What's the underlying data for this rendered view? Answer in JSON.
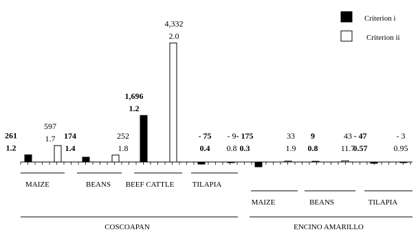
{
  "chart_data": {
    "type": "bar",
    "grid": false,
    "legend_position": "top-right",
    "series": [
      {
        "name": "Criterion i",
        "color": "#000000"
      },
      {
        "name": "Criterion ii",
        "color": "#ffffff"
      }
    ],
    "bars": [
      {
        "region": "COSCOAPAN",
        "product": "MAIZE",
        "series": "Criterion i",
        "value": 261,
        "value_label": "261",
        "ratio_label": "1.2",
        "bold": true
      },
      {
        "region": "COSCOAPAN",
        "product": "MAIZE",
        "series": "Criterion ii",
        "value": 597,
        "value_label": "597",
        "ratio_label": "1.7",
        "bold": false
      },
      {
        "region": "COSCOAPAN",
        "product": "BEANS",
        "series": "Criterion i",
        "value": 174,
        "value_label": "174",
        "ratio_label": "1.4",
        "bold": true
      },
      {
        "region": "COSCOAPAN",
        "product": "BEANS",
        "series": "Criterion ii",
        "value": 252,
        "value_label": "252",
        "ratio_label": "1.8",
        "bold": false
      },
      {
        "region": "COSCOAPAN",
        "product": "BEEF CATTLE",
        "series": "Criterion i",
        "value": 1696,
        "value_label": "1,696",
        "ratio_label": "1.2",
        "bold": true
      },
      {
        "region": "COSCOAPAN",
        "product": "BEEF CATTLE",
        "series": "Criterion ii",
        "value": 4332,
        "value_label": "4,332",
        "ratio_label": "2.0",
        "bold": false
      },
      {
        "region": "COSCOAPAN",
        "product": "TILAPIA",
        "series": "Criterion i",
        "value": -75,
        "value_label": "- 75",
        "ratio_label": "0.4",
        "bold": true
      },
      {
        "region": "COSCOAPAN",
        "product": "TILAPIA",
        "series": "Criterion ii",
        "value": -9,
        "value_label": "- 9",
        "ratio_label": "0.8",
        "bold": false
      },
      {
        "region": "ENCINO AMARILLO",
        "product": "MAIZE",
        "series": "Criterion i",
        "value": -175,
        "value_label": "- 175",
        "ratio_label": "0.3",
        "bold": true
      },
      {
        "region": "ENCINO AMARILLO",
        "product": "MAIZE",
        "series": "Criterion ii",
        "value": 33,
        "value_label": "33",
        "ratio_label": "1.9",
        "bold": false
      },
      {
        "region": "ENCINO AMARILLO",
        "product": "BEANS",
        "series": "Criterion i",
        "value": 9,
        "value_label": "9",
        "ratio_label": "0.8",
        "bold": true
      },
      {
        "region": "ENCINO AMARILLO",
        "product": "BEANS",
        "series": "Criterion ii",
        "value": 43,
        "value_label": "43",
        "ratio_label": "11.7",
        "bold": false
      },
      {
        "region": "ENCINO AMARILLO",
        "product": "TILAPIA",
        "series": "Criterion i",
        "value": -47,
        "value_label": "- 47",
        "ratio_label": "0.57",
        "bold": true
      },
      {
        "region": "ENCINO AMARILLO",
        "product": "TILAPIA",
        "series": "Criterion ii",
        "value": -3,
        "value_label": "- 3",
        "ratio_label": "0.95",
        "bold": false
      }
    ],
    "product_labels": [
      {
        "region": "COSCOAPAN",
        "label": "MAIZE"
      },
      {
        "region": "COSCOAPAN",
        "label": "BEANS"
      },
      {
        "region": "COSCOAPAN",
        "label": "BEEF CATTLE"
      },
      {
        "region": "COSCOAPAN",
        "label": "TILAPIA"
      },
      {
        "region": "ENCINO AMARILLO",
        "label": "MAIZE"
      },
      {
        "region": "ENCINO AMARILLO",
        "label": "BEANS"
      },
      {
        "region": "ENCINO AMARILLO",
        "label": "TILAPIA"
      }
    ],
    "region_labels": [
      "COSCOAPAN",
      "ENCINO AMARILLO"
    ]
  }
}
